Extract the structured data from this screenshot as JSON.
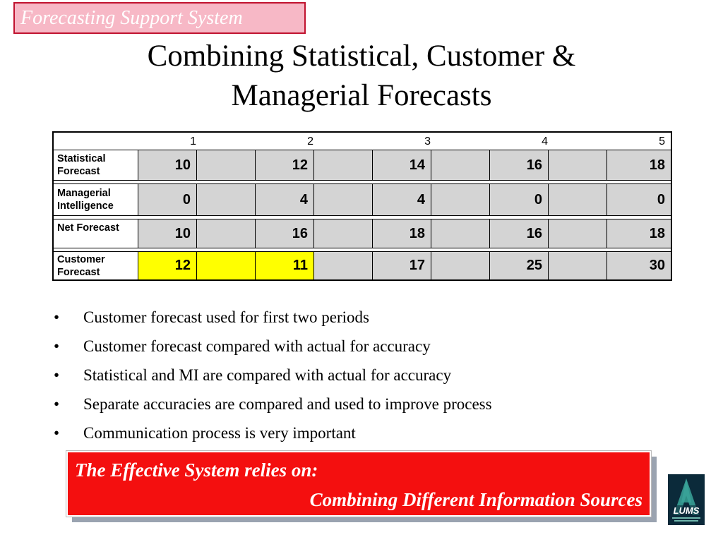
{
  "slide": {
    "tag": "Forecasting Support System",
    "title_line1": "Combining Statistical, Customer &",
    "title_line2": "Managerial Forecasts"
  },
  "table": {
    "columns": [
      "1",
      "2",
      "3",
      "4",
      "5"
    ],
    "rows": [
      {
        "label_line1": "Statistical",
        "label_line2": "Forecast",
        "values": [
          "10",
          "12",
          "14",
          "16",
          "18"
        ],
        "highlight": [
          false,
          false,
          false,
          false,
          false
        ]
      },
      {
        "label_line1": "Managerial",
        "label_line2": "Intelligence",
        "values": [
          "0",
          "4",
          "4",
          "0",
          "0"
        ],
        "highlight": [
          false,
          false,
          false,
          false,
          false
        ]
      },
      {
        "label_line1": "Net Forecast",
        "label_line2": "",
        "values": [
          "10",
          "16",
          "18",
          "16",
          "18"
        ],
        "highlight": [
          false,
          false,
          false,
          false,
          false
        ]
      },
      {
        "label_line1": "Customer",
        "label_line2": "Forecast",
        "values": [
          "12",
          "11",
          "17",
          "25",
          "30"
        ],
        "highlight": [
          true,
          true,
          false,
          false,
          false
        ]
      }
    ],
    "highlight_color": "#ffff00",
    "cell_color": "#d4d4d4"
  },
  "bullets": {
    "marker": "•",
    "items": [
      "Customer forecast used for first two periods",
      "Customer forecast compared with actual for accuracy",
      "Statistical and MI are compared with actual for accuracy",
      "Separate accuracies are compared and used to improve process",
      "Communication process is very important"
    ]
  },
  "callout": {
    "line1": "The Effective System relies on:",
    "line2": "Combining Different Information Sources",
    "background": "#f40f0f"
  },
  "logo": {
    "text": "LUMS",
    "icon": "lums-logo-icon"
  }
}
